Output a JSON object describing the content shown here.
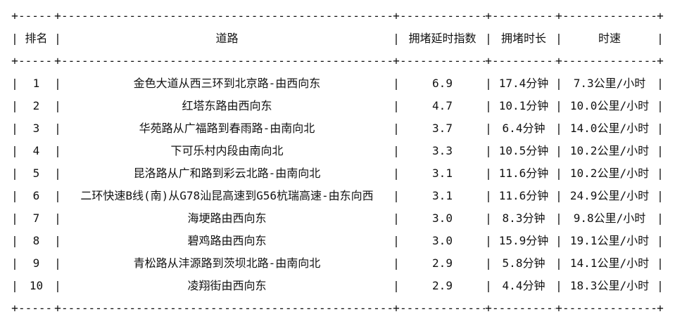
{
  "colors": {
    "text": "#121212",
    "background": "#ffffff"
  },
  "table": {
    "columns": {
      "rank": "排名",
      "road": "道路",
      "index": "拥堵延时指数",
      "duration": "拥堵时长",
      "speed": "时速"
    },
    "rows": [
      {
        "rank": "1",
        "road": "金色大道从西三环到北京路-由西向东",
        "index": "6.9",
        "duration": "17.4分钟",
        "speed": "7.3公里/小时"
      },
      {
        "rank": "2",
        "road": "红塔东路由西向东",
        "index": "4.7",
        "duration": "10.1分钟",
        "speed": "10.0公里/小时"
      },
      {
        "rank": "3",
        "road": "华苑路从广福路到春雨路-由南向北",
        "index": "3.7",
        "duration": "6.4分钟",
        "speed": "14.0公里/小时"
      },
      {
        "rank": "4",
        "road": "下可乐村内段由南向北",
        "index": "3.3",
        "duration": "10.5分钟",
        "speed": "10.2公里/小时"
      },
      {
        "rank": "5",
        "road": "昆洛路从广和路到彩云北路-由南向北",
        "index": "3.1",
        "duration": "11.6分钟",
        "speed": "10.2公里/小时"
      },
      {
        "rank": "6",
        "road": "二环快速B线(南)从G78汕昆高速到G56杭瑞高速-由东向西",
        "index": "3.1",
        "duration": "11.6分钟",
        "speed": "24.9公里/小时"
      },
      {
        "rank": "7",
        "road": "海埂路由西向东",
        "index": "3.0",
        "duration": "8.3分钟",
        "speed": "9.8公里/小时"
      },
      {
        "rank": "8",
        "road": "碧鸡路由西向东",
        "index": "3.0",
        "duration": "15.9分钟",
        "speed": "19.1公里/小时"
      },
      {
        "rank": "9",
        "road": "青松路从沣源路到茨坝北路-由南向北",
        "index": "2.9",
        "duration": "5.8分钟",
        "speed": "14.1公里/小时"
      },
      {
        "rank": "10",
        "road": "凌翔街由西向东",
        "index": "2.9",
        "duration": "4.4分钟",
        "speed": "18.3公里/小时"
      }
    ]
  }
}
